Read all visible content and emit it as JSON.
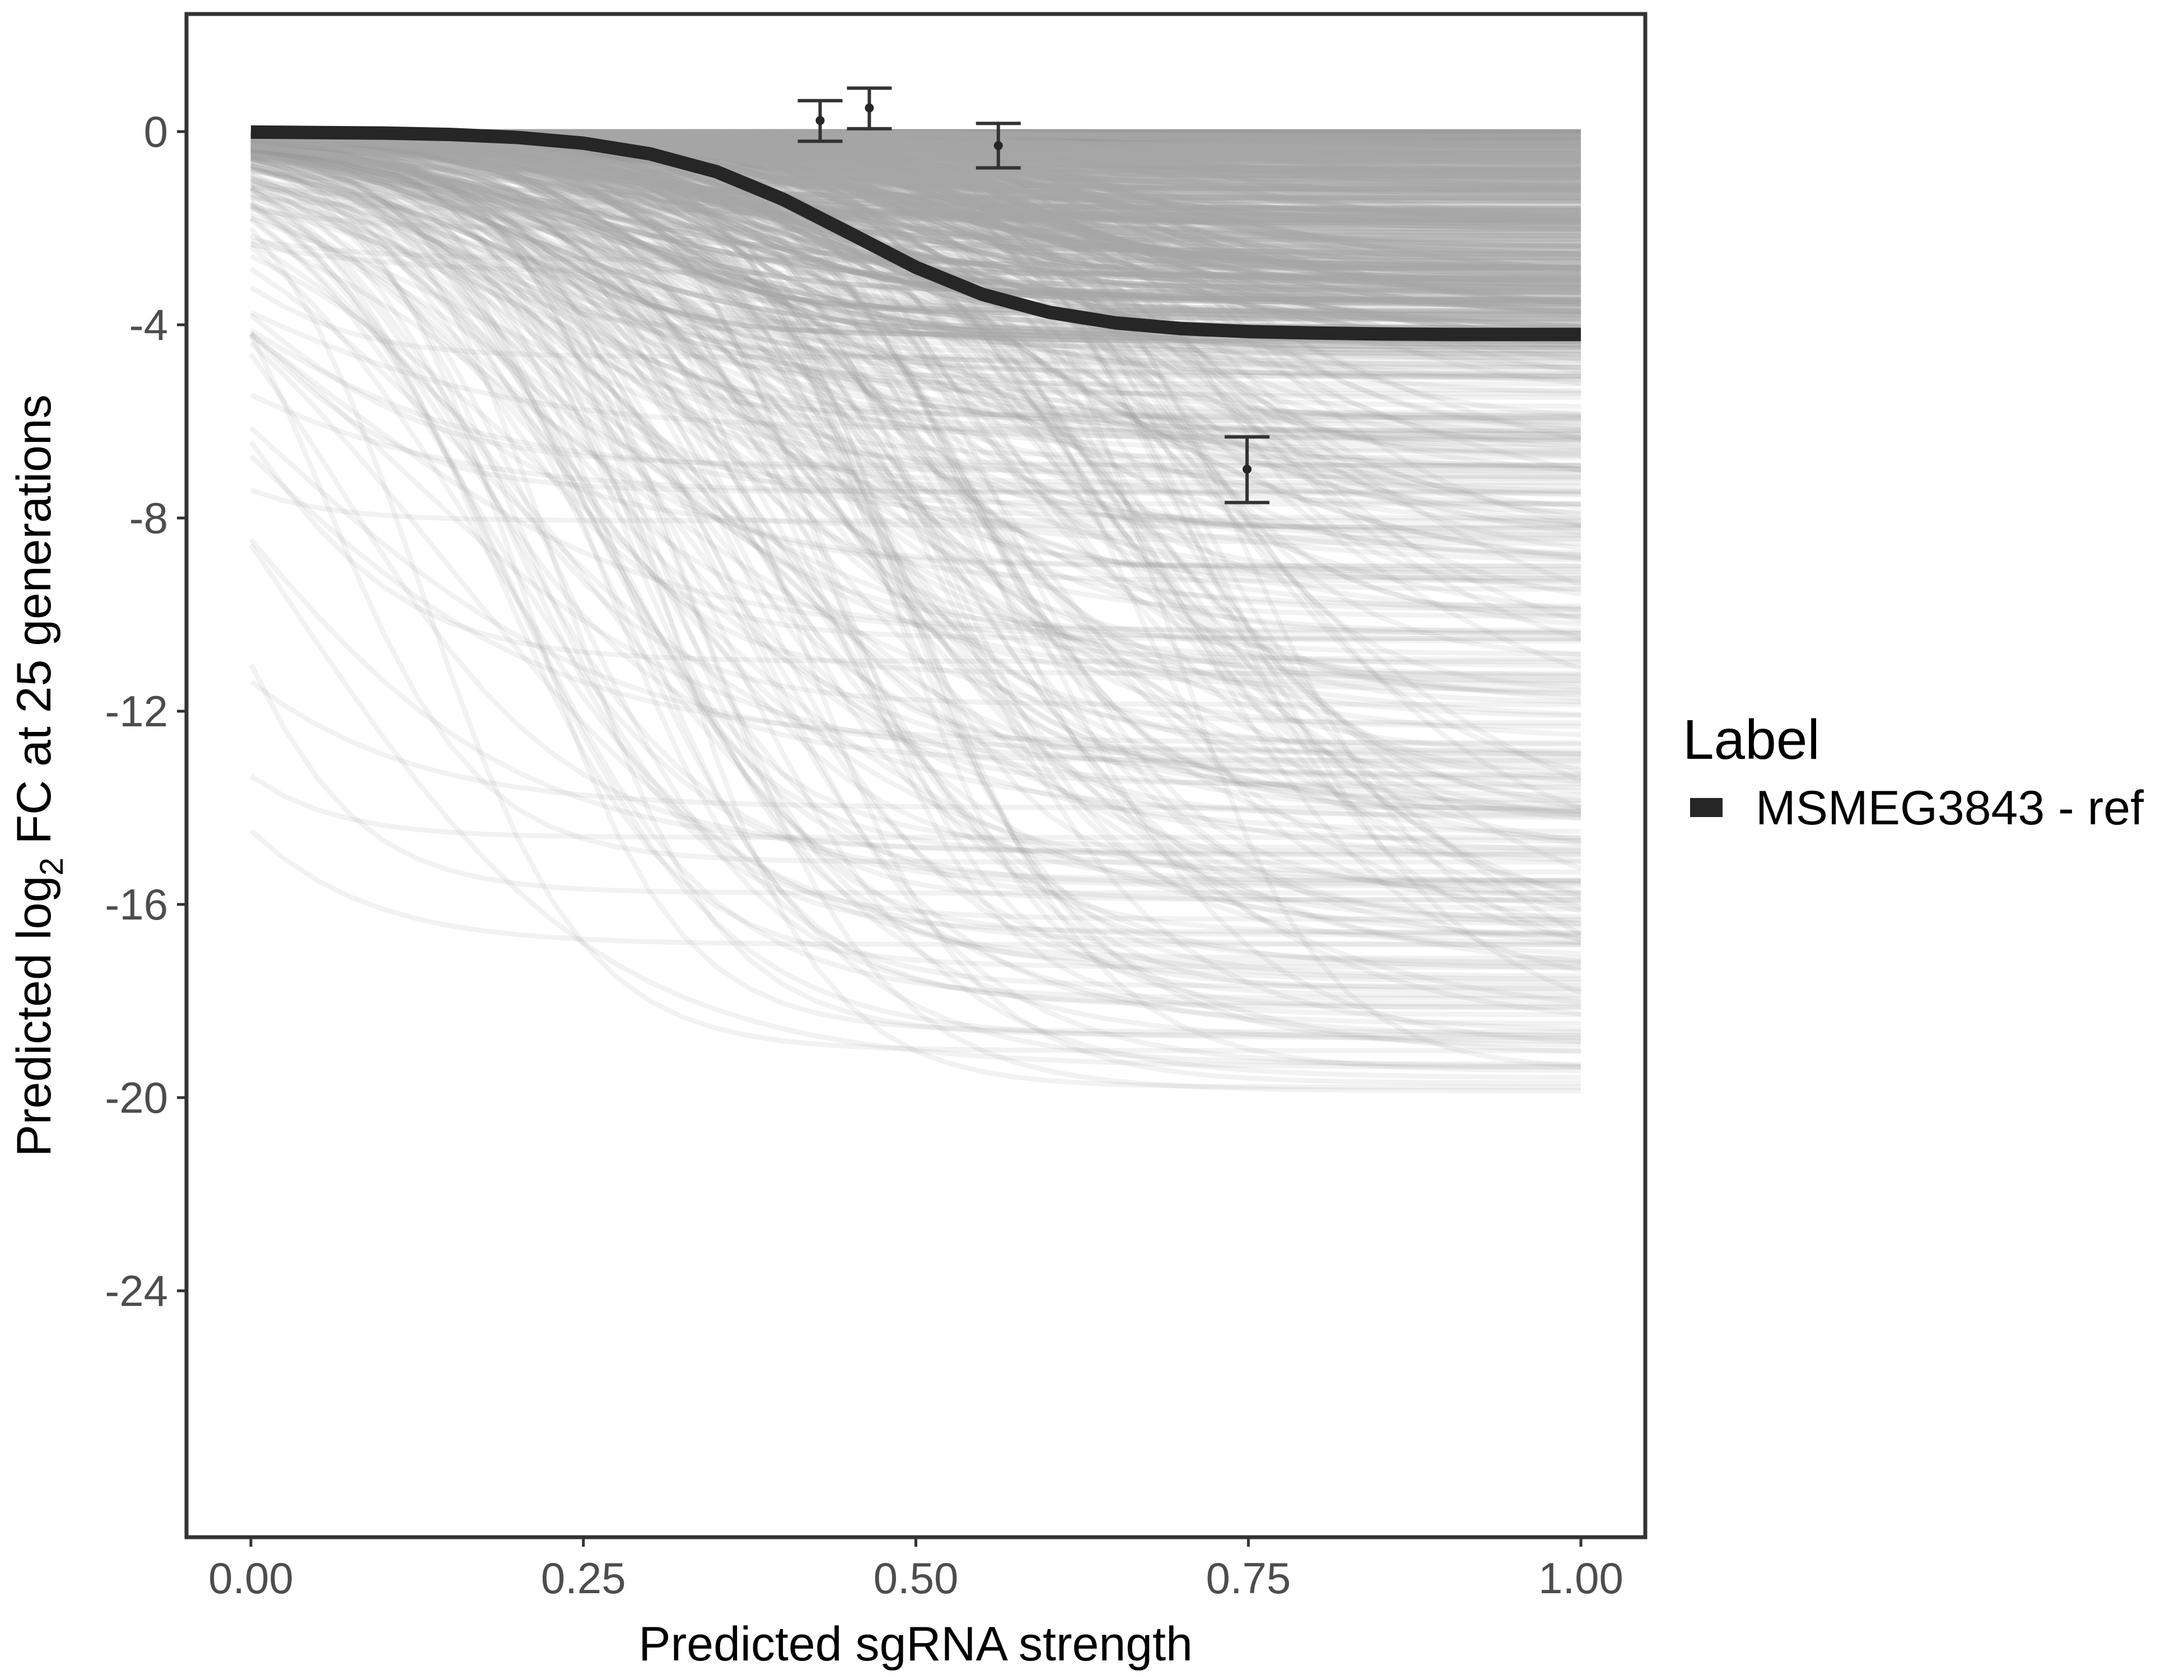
{
  "chart_data": {
    "type": "line",
    "title": "",
    "xlabel": "Predicted sgRNA strength",
    "ylabel_parts": [
      "Predicted  log",
      "2",
      " FC at 25 generations"
    ],
    "xlim": [
      -0.1,
      1.1
    ],
    "ylim": [
      -29.1,
      2.4
    ],
    "x_ticks": [
      0.0,
      0.25,
      0.5,
      0.75,
      1.0
    ],
    "x_tick_labels": [
      "0.00",
      "0.25",
      "0.50",
      "0.75",
      "1.00"
    ],
    "y_ticks": [
      0,
      -4,
      -8,
      -12,
      -16,
      -20,
      -24
    ],
    "y_tick_labels": [
      "0",
      "-4",
      "-8",
      "-12",
      "-16",
      "-20",
      "-24"
    ],
    "grid": false,
    "legend": {
      "title": "Label",
      "placement": "right",
      "entries": [
        {
          "label": "MSMEG3843 - ref",
          "color": "#262626"
        }
      ]
    },
    "reference_series": {
      "name": "MSMEG3843 - ref",
      "color": "#262626",
      "x": [
        0,
        0.05,
        0.1,
        0.15,
        0.2,
        0.25,
        0.3,
        0.35,
        0.4,
        0.45,
        0.5,
        0.55,
        0.6,
        0.65,
        0.7,
        0.75,
        0.8,
        0.85,
        0.9,
        0.95,
        1.0
      ],
      "y": [
        -0.01,
        -0.02,
        -0.03,
        -0.06,
        -0.12,
        -0.24,
        -0.46,
        -0.83,
        -1.4,
        -2.1,
        -2.81,
        -3.37,
        -3.74,
        -3.96,
        -4.08,
        -4.14,
        -4.17,
        -4.19,
        -4.2,
        -4.2,
        -4.2
      ]
    },
    "background_series": {
      "description_count": 600,
      "color": "#9a9a9a",
      "opacity": 0.13,
      "amplitude_range": [
        -20,
        0
      ],
      "midpoint_range": [
        0.15,
        0.75
      ]
    },
    "error_points": [
      {
        "x": 0.428,
        "y": 0.23,
        "ymin": -0.2,
        "ymax": 0.64
      },
      {
        "x": 0.465,
        "y": 0.49,
        "ymin": 0.06,
        "ymax": 0.9
      },
      {
        "x": 0.562,
        "y": -0.29,
        "ymin": -0.75,
        "ymax": 0.17
      },
      {
        "x": 0.749,
        "y": -6.99,
        "ymin": -7.68,
        "ymax": -6.32
      }
    ]
  }
}
